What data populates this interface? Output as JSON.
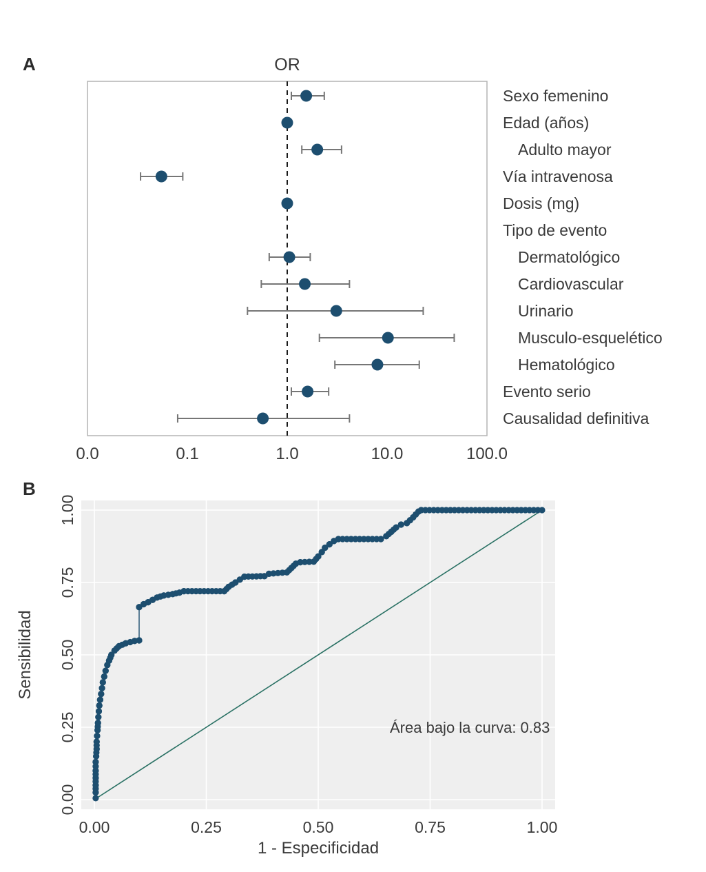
{
  "panels": {
    "a": "A",
    "b": "B"
  },
  "chart_data": [
    {
      "type": "scatter",
      "subtype": "forest-plot",
      "title": "OR",
      "x_scale": "log",
      "x_ticks": [
        0.01,
        0.1,
        1,
        10,
        100
      ],
      "x_tick_labels": [
        "0.0",
        "0.1",
        "1.0",
        "10.0",
        "100.0"
      ],
      "reference_line": 1.0,
      "rows": [
        {
          "label": "Sexo femenino",
          "indent": false,
          "or": 1.55,
          "lo": 1.1,
          "hi": 2.35
        },
        {
          "label": "Edad (años)",
          "indent": false,
          "or": 1.0,
          "lo": 0.97,
          "hi": 1.04
        },
        {
          "label": "Adulto mayor",
          "indent": true,
          "or": 2.0,
          "lo": 1.4,
          "hi": 3.5
        },
        {
          "label": "Vía intravenosa",
          "indent": false,
          "or": 0.055,
          "lo": 0.034,
          "hi": 0.09
        },
        {
          "label": "Dosis (mg)",
          "indent": false,
          "or": 1.0,
          "lo": 0.99,
          "hi": 1.01
        },
        {
          "label": "Tipo de evento",
          "indent": false,
          "or": null,
          "lo": null,
          "hi": null
        },
        {
          "label": "Dermatológico",
          "indent": true,
          "or": 1.05,
          "lo": 0.66,
          "hi": 1.7
        },
        {
          "label": "Cardiovascular",
          "indent": true,
          "or": 1.5,
          "lo": 0.55,
          "hi": 4.2
        },
        {
          "label": "Urinario",
          "indent": true,
          "or": 3.1,
          "lo": 0.4,
          "hi": 23
        },
        {
          "label": "Musculo-esquelético",
          "indent": true,
          "or": 10.2,
          "lo": 2.1,
          "hi": 47
        },
        {
          "label": "Hematológico",
          "indent": true,
          "or": 8.0,
          "lo": 3.0,
          "hi": 21
        },
        {
          "label": "Evento serio",
          "indent": false,
          "or": 1.6,
          "lo": 1.1,
          "hi": 2.6
        },
        {
          "label": "Causalidad definitiva",
          "indent": false,
          "or": 0.57,
          "lo": 0.08,
          "hi": 4.2
        }
      ],
      "colors": {
        "dot": "#1d4e6f",
        "error_bar": "#767676",
        "frame": "#b4b4b4",
        "reference": "#1a1a1a",
        "text": "#3a3a3a"
      }
    },
    {
      "type": "line",
      "subtype": "roc-curve",
      "xlabel": "1 - Especificidad",
      "ylabel": "Sensibilidad",
      "x_ticks": [
        0,
        0.25,
        0.5,
        0.75,
        1.0
      ],
      "x_tick_labels": [
        "0.00",
        "0.25",
        "0.50",
        "0.75",
        "1.00"
      ],
      "y_ticks": [
        0,
        0.25,
        0.5,
        0.75,
        1.0
      ],
      "y_tick_labels": [
        "0.00",
        "0.25",
        "0.50",
        "0.75",
        "1.00"
      ],
      "xlim": [
        0,
        1
      ],
      "ylim": [
        0,
        1
      ],
      "grid": true,
      "diagonal_reference": true,
      "auc": 0.83,
      "annotation": {
        "text": "Área bajo la curva: 0.83",
        "x": 0.66,
        "y": 0.25
      },
      "roc_points": [
        [
          0.003,
          0.005
        ],
        [
          0.003,
          0.025
        ],
        [
          0.003,
          0.05
        ],
        [
          0.003,
          0.075
        ],
        [
          0.003,
          0.1
        ],
        [
          0.003,
          0.13
        ],
        [
          0.004,
          0.15
        ],
        [
          0.005,
          0.175
        ],
        [
          0.005,
          0.2
        ],
        [
          0.006,
          0.22
        ],
        [
          0.007,
          0.24
        ],
        [
          0.008,
          0.265
        ],
        [
          0.009,
          0.285
        ],
        [
          0.01,
          0.305
        ],
        [
          0.011,
          0.325
        ],
        [
          0.013,
          0.345
        ],
        [
          0.015,
          0.365
        ],
        [
          0.017,
          0.385
        ],
        [
          0.019,
          0.405
        ],
        [
          0.022,
          0.425
        ],
        [
          0.025,
          0.445
        ],
        [
          0.029,
          0.465
        ],
        [
          0.033,
          0.48
        ],
        [
          0.038,
          0.5
        ],
        [
          0.045,
          0.515
        ],
        [
          0.055,
          0.53
        ],
        [
          0.07,
          0.54
        ],
        [
          0.09,
          0.548
        ],
        [
          0.1,
          0.55
        ],
        [
          0.1,
          0.665
        ],
        [
          0.11,
          0.675
        ],
        [
          0.12,
          0.682
        ],
        [
          0.13,
          0.69
        ],
        [
          0.14,
          0.698
        ],
        [
          0.155,
          0.705
        ],
        [
          0.175,
          0.71
        ],
        [
          0.19,
          0.715
        ],
        [
          0.2,
          0.72
        ],
        [
          0.29,
          0.72
        ],
        [
          0.3,
          0.735
        ],
        [
          0.315,
          0.75
        ],
        [
          0.325,
          0.76
        ],
        [
          0.335,
          0.77
        ],
        [
          0.38,
          0.772
        ],
        [
          0.39,
          0.78
        ],
        [
          0.43,
          0.785
        ],
        [
          0.44,
          0.8
        ],
        [
          0.45,
          0.815
        ],
        [
          0.46,
          0.82
        ],
        [
          0.49,
          0.822
        ],
        [
          0.5,
          0.84
        ],
        [
          0.508,
          0.855
        ],
        [
          0.515,
          0.87
        ],
        [
          0.525,
          0.882
        ],
        [
          0.535,
          0.893
        ],
        [
          0.545,
          0.9
        ],
        [
          0.64,
          0.9
        ],
        [
          0.652,
          0.91
        ],
        [
          0.663,
          0.925
        ],
        [
          0.674,
          0.94
        ],
        [
          0.685,
          0.95
        ],
        [
          0.698,
          0.955
        ],
        [
          0.705,
          0.965
        ],
        [
          0.712,
          0.975
        ],
        [
          0.718,
          0.985
        ],
        [
          0.724,
          0.995
        ],
        [
          0.73,
          1.0
        ],
        [
          1.0,
          1.0
        ]
      ],
      "colors": {
        "curve": "#1d4e6f",
        "diagonal": "#2a7164",
        "panel_bg": "#efefef",
        "grid": "#ffffff",
        "text": "#3a3a3a"
      }
    }
  ]
}
